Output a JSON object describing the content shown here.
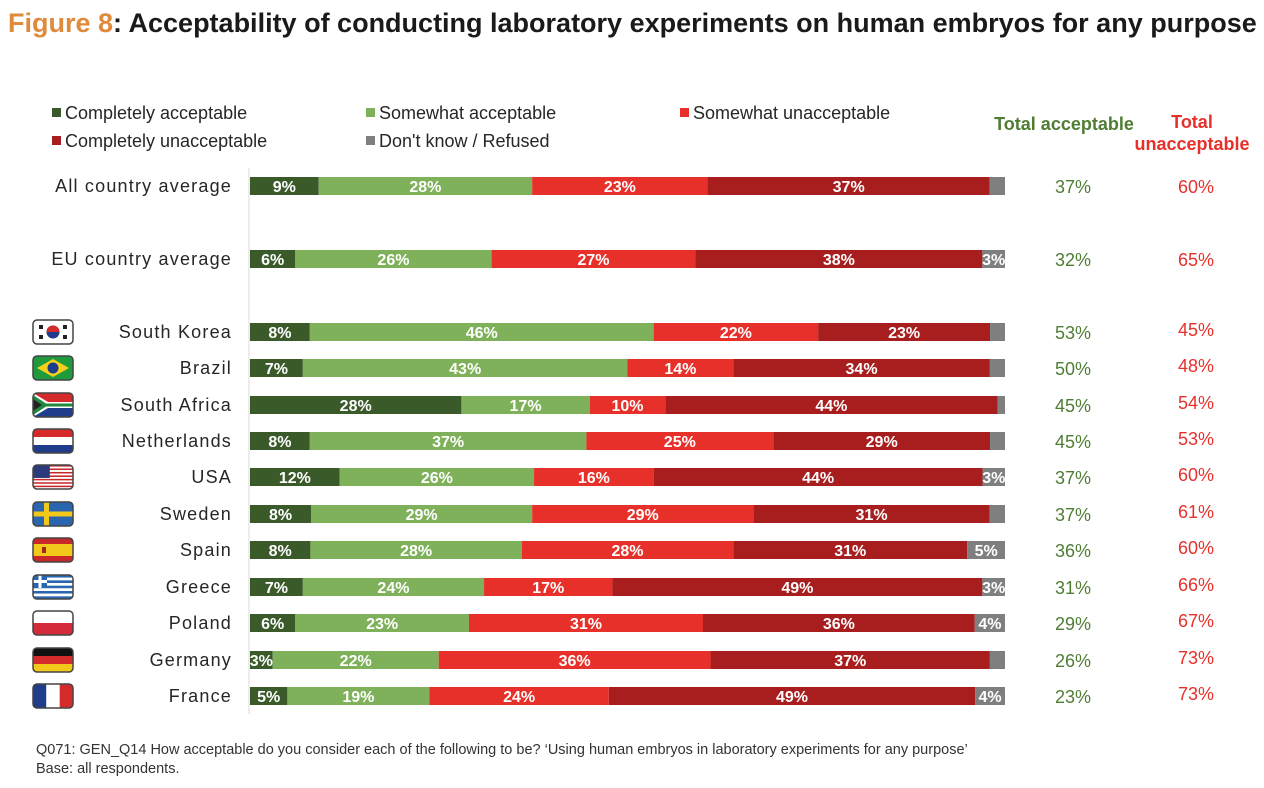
{
  "title": {
    "figure_label": "Figure 8",
    "text": ": Acceptability of conducting laboratory experiments on human embryos for any purpose"
  },
  "legend": [
    {
      "label": "Completely acceptable",
      "color": "#3a5a2a"
    },
    {
      "label": "Somewhat acceptable",
      "color": "#7fb15a"
    },
    {
      "label": "Somewhat unacceptable",
      "color": "#e8302a"
    },
    {
      "label": "Completely unacceptable",
      "color": "#a81e1e"
    },
    {
      "label": "Don't know / Refused",
      "color": "#7f7f7f"
    }
  ],
  "columns": {
    "total_acceptable": {
      "label": "Total acceptable",
      "color": "#4f7d34"
    },
    "total_unacceptable": {
      "label": "Total unacceptable",
      "color": "#e8302a"
    }
  },
  "chart_data": {
    "type": "bar",
    "orientation": "horizontal-stacked-100",
    "categories": [
      "All country average",
      "EU country average",
      "South Korea",
      "Brazil",
      "South Africa",
      "Netherlands",
      "USA",
      "Sweden",
      "Spain",
      "Greece",
      "Poland",
      "Germany",
      "France"
    ],
    "flags": [
      null,
      null,
      "south-korea-flag",
      "brazil-flag",
      "south-africa-flag",
      "netherlands-flag",
      "usa-flag",
      "sweden-flag",
      "spain-flag",
      "greece-flag",
      "poland-flag",
      "germany-flag",
      "france-flag"
    ],
    "series": [
      {
        "name": "Completely acceptable",
        "values": [
          9,
          6,
          8,
          7,
          28,
          8,
          12,
          8,
          8,
          7,
          6,
          3,
          5
        ]
      },
      {
        "name": "Somewhat acceptable",
        "values": [
          28,
          26,
          46,
          43,
          17,
          37,
          26,
          29,
          28,
          24,
          23,
          22,
          19
        ]
      },
      {
        "name": "Somewhat unacceptable",
        "values": [
          23,
          27,
          22,
          14,
          10,
          25,
          16,
          29,
          28,
          17,
          31,
          36,
          24
        ]
      },
      {
        "name": "Completely unacceptable",
        "values": [
          37,
          38,
          23,
          34,
          44,
          29,
          44,
          31,
          31,
          49,
          36,
          37,
          49
        ]
      },
      {
        "name": "Don't know / Refused",
        "values": [
          2,
          3,
          2,
          2,
          1,
          2,
          3,
          2,
          5,
          3,
          4,
          2,
          4
        ]
      }
    ],
    "labels": [
      [
        "9%",
        "28%",
        "23%",
        "37%",
        ""
      ],
      [
        "6%",
        "26%",
        "27%",
        "38%",
        "3%"
      ],
      [
        "8%",
        "46%",
        "22%",
        "23%",
        ""
      ],
      [
        "7%",
        "43%",
        "14%",
        "34%",
        ""
      ],
      [
        "28%",
        "17%",
        "10%",
        "44%",
        ""
      ],
      [
        "8%",
        "37%",
        "25%",
        "29%",
        ""
      ],
      [
        "12%",
        "26%",
        "16%",
        "44%",
        "3%"
      ],
      [
        "8%",
        "29%",
        "29%",
        "31%",
        ""
      ],
      [
        "8%",
        "28%",
        "28%",
        "31%",
        "5%"
      ],
      [
        "7%",
        "24%",
        "17%",
        "49%",
        "3%"
      ],
      [
        "6%",
        "23%",
        "31%",
        "36%",
        "4%"
      ],
      [
        "3%",
        "22%",
        "36%",
        "37%",
        ""
      ],
      [
        "5%",
        "19%",
        "24%",
        "49%",
        "4%"
      ]
    ],
    "total_acceptable": [
      "37%",
      "32%",
      "53%",
      "50%",
      "45%",
      "45%",
      "37%",
      "37%",
      "36%",
      "31%",
      "29%",
      "26%",
      "23%"
    ],
    "total_unacceptable": [
      "60%",
      "65%",
      "45%",
      "48%",
      "54%",
      "53%",
      "60%",
      "61%",
      "60%",
      "66%",
      "67%",
      "73%",
      "73%"
    ],
    "xlim": [
      0,
      100
    ]
  },
  "footnote": {
    "line1": "Q071: GEN_Q14 How acceptable do you consider each of the following to be? ‘Using human embryos in laboratory experiments for any purpose’",
    "line2": "Base: all respondents."
  }
}
